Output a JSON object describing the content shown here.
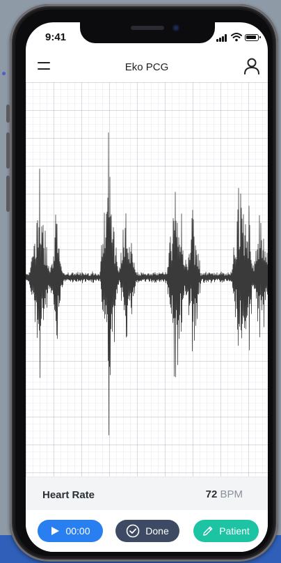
{
  "status_bar": {
    "time": "9:41"
  },
  "header": {
    "title": "Eko PCG"
  },
  "heart_rate": {
    "label": "Heart Rate",
    "value": "72",
    "unit": "BPM"
  },
  "controls": {
    "play": {
      "label": "00:00",
      "icon": "play-icon"
    },
    "done": {
      "label": "Done",
      "icon": "check-circle-icon"
    },
    "patient": {
      "label": "Patient",
      "icon": "pencil-icon"
    }
  },
  "colors": {
    "play_button": "#2a7ff0",
    "done_button": "#3e4a63",
    "patient_button": "#1cc4a4",
    "waveform": "#3a3a3a",
    "grid": "#c8ccd2"
  }
}
